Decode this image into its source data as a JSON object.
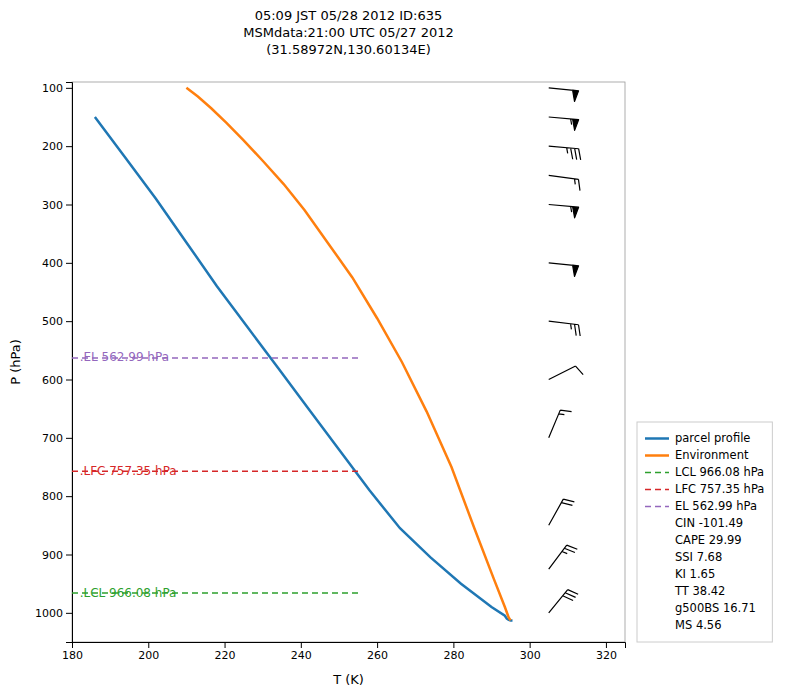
{
  "chart_data": {
    "type": "line",
    "title": "05:09 JST 05/28 2012  ID:635\nMSMdata:21:00 UTC 05/27 2012\n(31.58972N,130.60134E)",
    "x_label": "T (K)",
    "y_label": "P (hPa)",
    "xlim": [
      180,
      325
    ],
    "ylim": [
      1050,
      90
    ],
    "xticks": [
      180,
      200,
      220,
      240,
      260,
      280,
      300,
      320
    ],
    "yticks": [
      100,
      200,
      300,
      400,
      500,
      600,
      700,
      800,
      900,
      1000
    ],
    "grid": false,
    "legend": "lower right",
    "series": [
      {
        "name": "parcel profile",
        "color": "#1f77b4",
        "line_style": "solid",
        "x": [
          186.0,
          194.0,
          202.0,
          210.0,
          218.0,
          226.0,
          234.0,
          242.0,
          250.0,
          258.0,
          266.0,
          274.0,
          282.0,
          290.0,
          293.5,
          294.0,
          294.5,
          295.0,
          295.5
        ],
        "values": [
          150,
          220,
          290,
          365,
          440,
          510,
          580,
          650,
          720,
          790,
          855,
          905,
          950,
          990,
          1005,
          1010,
          1012,
          1013,
          1013
        ]
      },
      {
        "name": "Environment",
        "color": "#ff7f0e",
        "line_style": "solid",
        "x": [
          210.0,
          213.0,
          216.5,
          220.5,
          225.0,
          230.0,
          235.5,
          241.0,
          247.0,
          253.5,
          260.0,
          266.5,
          273.0,
          279.5,
          285.5,
          290.5,
          293.5,
          294.5,
          295.0
        ],
        "values": [
          100,
          115,
          135,
          160,
          190,
          225,
          265,
          310,
          365,
          425,
          495,
          570,
          655,
          750,
          855,
          940,
          990,
          1008,
          1013
        ]
      },
      {
        "name": "LCL 966.08 hPa",
        "color": "#2ca02c",
        "line_style": "dashed",
        "x": [
          180,
          255
        ],
        "values": [
          966.08,
          966.08
        ]
      },
      {
        "name": "LFC 757.35 hPa",
        "color": "#d62728",
        "line_style": "dashed",
        "x": [
          180,
          255
        ],
        "values": [
          757.35,
          757.35
        ]
      },
      {
        "name": "EL 562.99 hPa",
        "color": "#9467bd",
        "line_style": "dashed",
        "x": [
          180,
          255
        ],
        "values": [
          562.99,
          562.99
        ]
      }
    ],
    "annotations": [
      {
        "text": ".LCL 966.08 hPa",
        "x": 182,
        "y": 966.08,
        "color": "#2ca02c"
      },
      {
        "text": ".LFC 757.35 hPa",
        "x": 182,
        "y": 757.35,
        "color": "#d62728"
      },
      {
        "text": ".EL 562.99 hPa",
        "x": 182,
        "y": 562.99,
        "color": "#9467bd"
      }
    ],
    "legend_texts": [
      "CIN -101.49",
      "CAPE 29.99",
      "SSI 7.68",
      "KI 1.65",
      "TT 38.42",
      "g500BS 16.71",
      "MS 4.56"
    ],
    "wind_barbs": {
      "x": 305,
      "pressures": [
        100,
        150,
        200,
        250,
        300,
        400,
        500,
        600,
        700,
        850,
        925,
        1000
      ],
      "u": [
        -50,
        -55,
        -35,
        -15,
        -55,
        -50,
        -25,
        -10,
        -5,
        -10,
        -15,
        -18
      ],
      "v": [
        5,
        5,
        3,
        2,
        5,
        5,
        3,
        -5,
        -12,
        -18,
        -20,
        -22
      ]
    }
  }
}
